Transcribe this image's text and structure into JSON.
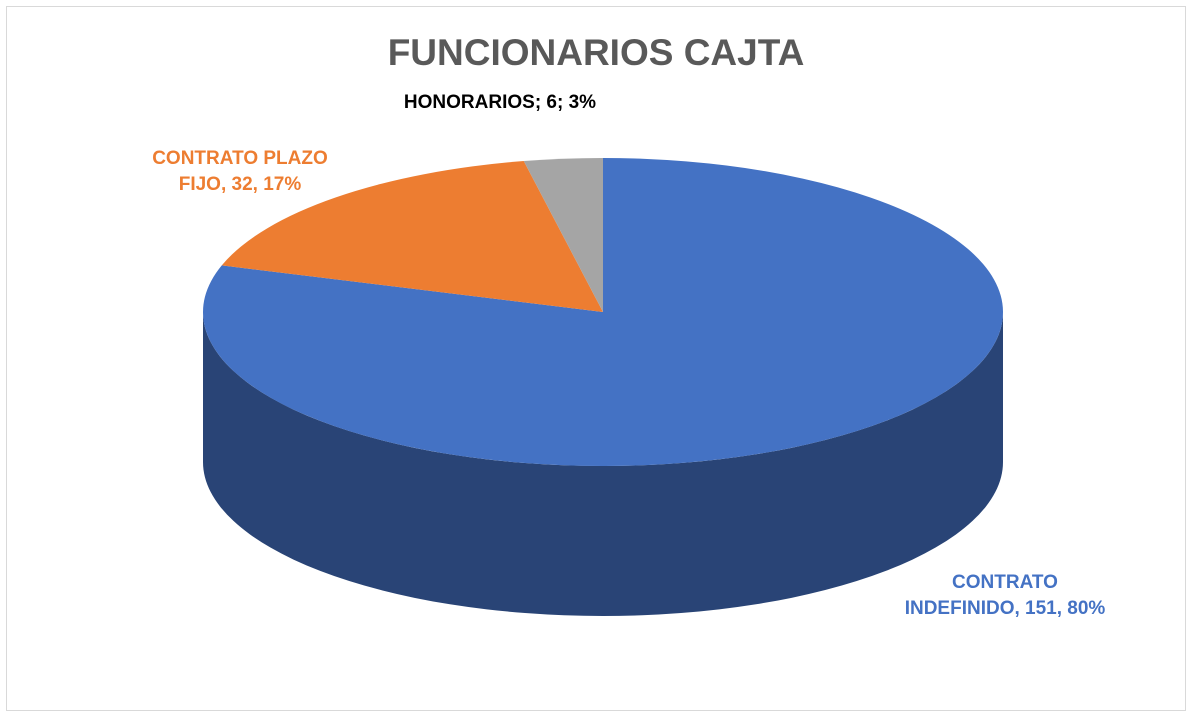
{
  "chart_data": {
    "type": "pie",
    "title": "FUNCIONARIOS CAJTA",
    "values": [
      151,
      32,
      6
    ],
    "value_labels": [
      "CONTRATO INDEFINIDO, 151, 80%",
      "CONTRATO PLAZO FIJO, 32, 17%",
      "HONORARIOS; 6; 3%"
    ],
    "colors": [
      "#4472c4",
      "#ed7d31",
      "#a5a5a5"
    ]
  }
}
